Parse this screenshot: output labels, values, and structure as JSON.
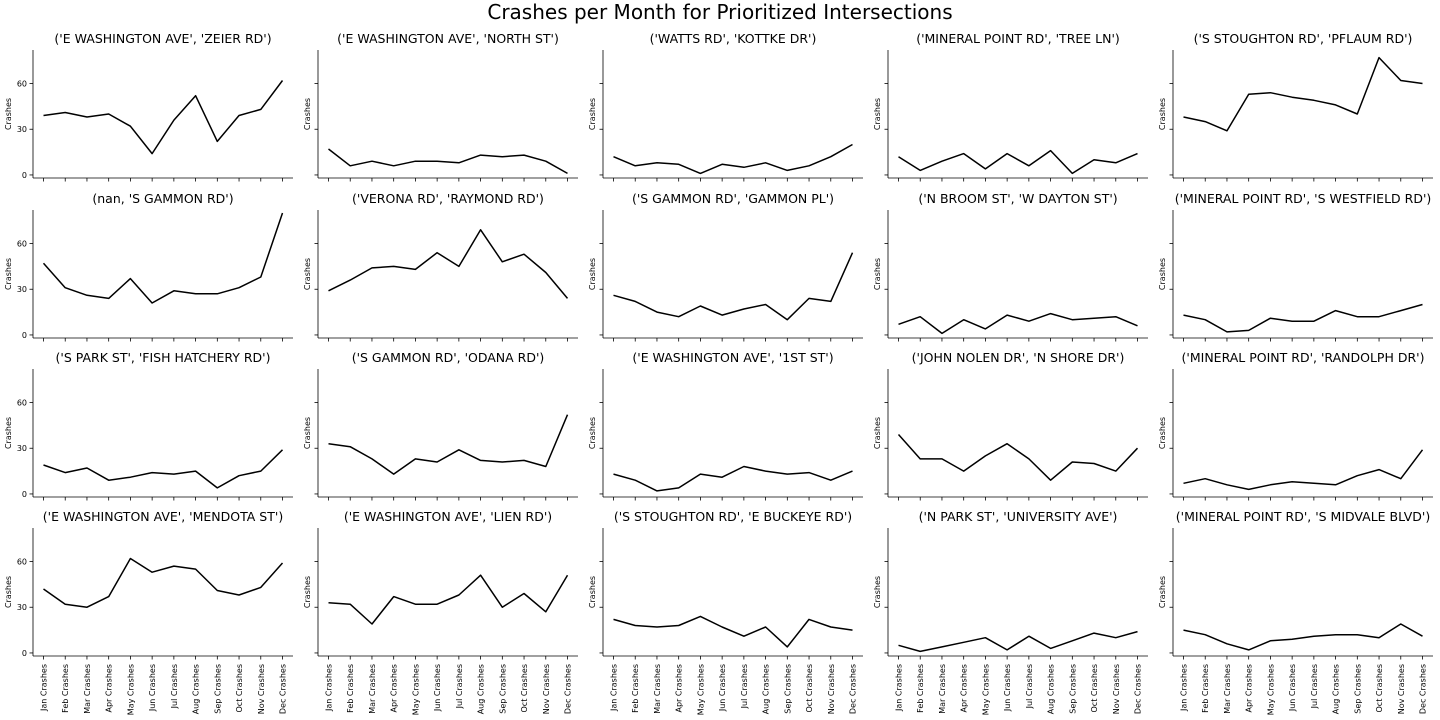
{
  "chart_data": {
    "type": "line",
    "title": "Crashes per Month for Prioritized Intersections",
    "ylabel": "Crashes",
    "categories": [
      "Jan Crashes",
      "Feb Crashes",
      "Mar Crashes",
      "Apr Crashes",
      "May Crashes",
      "Jun Crashes",
      "Jul Crashes",
      "Aug Crashes",
      "Sep Crashes",
      "Oct Crashes",
      "Nov Crashes",
      "Dec Crashes"
    ],
    "yticks": [
      0,
      30,
      60
    ],
    "ylim": [
      -2,
      82
    ],
    "grid": false,
    "line_color": "#000000",
    "panels": [
      {
        "title": "('E WASHINGTON AVE', 'ZEIER RD')",
        "values": [
          39,
          41,
          38,
          40,
          32,
          14,
          36,
          52,
          22,
          39,
          43,
          62
        ]
      },
      {
        "title": "('E WASHINGTON AVE', 'NORTH ST')",
        "values": [
          17,
          6,
          9,
          6,
          9,
          9,
          8,
          13,
          12,
          13,
          9,
          1
        ]
      },
      {
        "title": "('WATTS RD', 'KOTTKE DR')",
        "values": [
          12,
          6,
          8,
          7,
          1,
          7,
          5,
          8,
          3,
          6,
          12,
          20
        ]
      },
      {
        "title": "('MINERAL POINT RD', 'TREE LN')",
        "values": [
          12,
          3,
          9,
          14,
          4,
          14,
          6,
          16,
          1,
          10,
          8,
          14
        ]
      },
      {
        "title": "('S STOUGHTON RD', 'PFLAUM RD')",
        "values": [
          38,
          35,
          29,
          53,
          54,
          51,
          49,
          46,
          40,
          77,
          62,
          60
        ]
      },
      {
        "title": "(nan, 'S GAMMON RD')",
        "values": [
          47,
          31,
          26,
          24,
          37,
          21,
          29,
          27,
          27,
          31,
          38,
          80
        ]
      },
      {
        "title": "('VERONA RD', 'RAYMOND RD')",
        "values": [
          29,
          36,
          44,
          45,
          43,
          54,
          45,
          69,
          48,
          53,
          41,
          24
        ]
      },
      {
        "title": "('S GAMMON RD', 'GAMMON PL')",
        "values": [
          26,
          22,
          15,
          12,
          19,
          13,
          17,
          20,
          10,
          24,
          22,
          54
        ]
      },
      {
        "title": "('N BROOM ST', 'W DAYTON ST')",
        "values": [
          7,
          12,
          1,
          10,
          4,
          13,
          9,
          14,
          10,
          11,
          12,
          6
        ]
      },
      {
        "title": "('MINERAL POINT RD', 'S WESTFIELD RD')",
        "values": [
          13,
          10,
          2,
          3,
          11,
          9,
          9,
          16,
          12,
          12,
          16,
          20
        ]
      },
      {
        "title": "('S PARK ST', 'FISH HATCHERY RD')",
        "values": [
          19,
          14,
          17,
          9,
          11,
          14,
          13,
          15,
          4,
          12,
          15,
          29
        ]
      },
      {
        "title": "('S GAMMON RD', 'ODANA RD')",
        "values": [
          33,
          31,
          23,
          13,
          23,
          21,
          29,
          22,
          21,
          22,
          18,
          52
        ]
      },
      {
        "title": "('E WASHINGTON AVE', '1ST ST')",
        "values": [
          13,
          9,
          2,
          4,
          13,
          11,
          18,
          15,
          13,
          14,
          9,
          15
        ]
      },
      {
        "title": "('JOHN NOLEN DR', 'N SHORE DR')",
        "values": [
          39,
          23,
          23,
          15,
          25,
          33,
          23,
          9,
          21,
          20,
          15,
          30
        ]
      },
      {
        "title": "('MINERAL POINT RD', 'RANDOLPH DR')",
        "values": [
          7,
          10,
          6,
          3,
          6,
          8,
          7,
          6,
          12,
          16,
          10,
          29
        ]
      },
      {
        "title": "('E WASHINGTON AVE', 'MENDOTA ST')",
        "values": [
          42,
          32,
          30,
          37,
          62,
          53,
          57,
          55,
          41,
          38,
          43,
          59
        ]
      },
      {
        "title": "('E WASHINGTON AVE', 'LIEN RD')",
        "values": [
          33,
          32,
          19,
          37,
          32,
          32,
          38,
          51,
          30,
          39,
          27,
          51
        ]
      },
      {
        "title": "('S STOUGHTON RD', 'E BUCKEYE RD')",
        "values": [
          22,
          18,
          17,
          18,
          24,
          17,
          11,
          17,
          4,
          22,
          17,
          15
        ]
      },
      {
        "title": "('N PARK ST', 'UNIVERSITY AVE')",
        "values": [
          5,
          1,
          4,
          7,
          10,
          2,
          11,
          3,
          8,
          13,
          10,
          14
        ]
      },
      {
        "title": "('MINERAL POINT RD', 'S MIDVALE BLVD')",
        "values": [
          15,
          12,
          6,
          2,
          8,
          9,
          11,
          12,
          12,
          10,
          19,
          11
        ]
      }
    ]
  }
}
